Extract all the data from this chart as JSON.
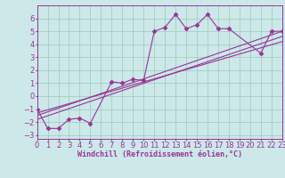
{
  "title": "",
  "xlabel": "Windchill (Refroidissement éolien,°C)",
  "ylabel": "",
  "bg_color": "#cce8e8",
  "grid_color": "#99ccbb",
  "line_color": "#993399",
  "x_data": [
    0,
    1,
    2,
    3,
    4,
    5,
    7,
    8,
    9,
    10,
    11,
    12,
    13,
    14,
    15,
    16,
    17,
    18,
    21,
    22,
    23
  ],
  "y_data": [
    -1.0,
    -2.5,
    -2.5,
    -1.8,
    -1.7,
    -2.1,
    1.1,
    1.0,
    1.3,
    1.2,
    5.0,
    5.3,
    6.3,
    5.2,
    5.5,
    6.3,
    5.2,
    5.2,
    3.3,
    5.0,
    5.0
  ],
  "regression_lines": [
    {
      "x": [
        0,
        23
      ],
      "y": [
        -1.5,
        5.0
      ]
    },
    {
      "x": [
        0,
        23
      ],
      "y": [
        -1.8,
        4.6
      ]
    },
    {
      "x": [
        0,
        23
      ],
      "y": [
        -1.3,
        4.2
      ]
    }
  ],
  "xlim": [
    0,
    23
  ],
  "ylim": [
    -3.3,
    7.0
  ],
  "yticks": [
    -3,
    -2,
    -1,
    0,
    1,
    2,
    3,
    4,
    5,
    6
  ],
  "xticks": [
    0,
    1,
    2,
    3,
    4,
    5,
    6,
    7,
    8,
    9,
    10,
    11,
    12,
    13,
    14,
    15,
    16,
    17,
    18,
    19,
    20,
    21,
    22,
    23
  ],
  "font_size": 6,
  "marker": "D",
  "marker_size": 2.5,
  "linewidth": 0.8
}
